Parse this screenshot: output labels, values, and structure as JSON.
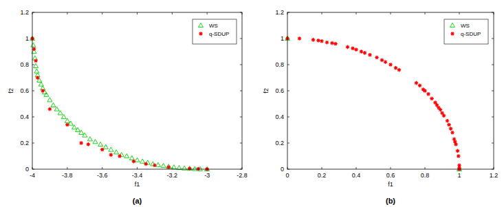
{
  "chart_data": [
    {
      "type": "scatter",
      "title": "(a)",
      "x_label": "f1",
      "y_label": "f2",
      "xlim": [
        -4,
        -2.8
      ],
      "xticks": [
        -4,
        -3.8,
        -3.6,
        -3.4,
        -3.2,
        -3,
        -2.8
      ],
      "ylim": [
        0,
        1.2
      ],
      "yticks": [
        0,
        0.2,
        0.4,
        0.6,
        0.8,
        1,
        1.2
      ],
      "grid": false,
      "legend": "northeast",
      "series": [
        {
          "name": "WS",
          "color": "#00d000",
          "marker": "triangle",
          "x": [
            -4,
            -3.995,
            -3.99,
            -3.985,
            -3.98,
            -3.975,
            -3.97,
            -3.96,
            -3.95,
            -3.94,
            -3.93,
            -3.92,
            -3.9,
            -3.88,
            -3.86,
            -3.84,
            -3.82,
            -3.8,
            -3.78,
            -3.76,
            -3.74,
            -3.72,
            -3.7,
            -3.67,
            -3.64,
            -3.61,
            -3.58,
            -3.55,
            -3.52,
            -3.49,
            -3.46,
            -3.43,
            -3.4,
            -3.37,
            -3.34,
            -3.31,
            -3.28,
            -3.25,
            -3.22,
            -3.19,
            -3.16,
            -3.13,
            -3.1,
            -3.07,
            -3.04,
            -3
          ],
          "values": [
            1,
            0.95,
            0.9,
            0.85,
            0.79,
            0.75,
            0.72,
            0.68,
            0.65,
            0.62,
            0.59,
            0.57,
            0.53,
            0.49,
            0.46,
            0.43,
            0.4,
            0.37,
            0.35,
            0.32,
            0.3,
            0.28,
            0.26,
            0.23,
            0.21,
            0.19,
            0.17,
            0.15,
            0.13,
            0.11,
            0.1,
            0.085,
            0.07,
            0.06,
            0.05,
            0.04,
            0.033,
            0.026,
            0.02,
            0.015,
            0.011,
            0.007,
            0.005,
            0.003,
            0.001,
            0
          ]
        },
        {
          "name": "q-SDUP",
          "color": "#ff0000",
          "marker": "star",
          "x": [
            -4,
            -3.99,
            -3.98,
            -3.97,
            -3.94,
            -3.9,
            -3.8,
            -3.72,
            -3.68,
            -3.6,
            -3.55,
            -3.5,
            -3.42,
            -3.35,
            -3.3,
            -3.22,
            -3.1,
            -3.05,
            -3
          ],
          "values": [
            1,
            0.92,
            0.83,
            0.7,
            0.6,
            0.46,
            0.34,
            0.2,
            0.19,
            0.15,
            0.11,
            0.1,
            0.06,
            0.04,
            0.03,
            0.015,
            0.005,
            0.003,
            0
          ]
        }
      ]
    },
    {
      "type": "scatter",
      "title": "(b)",
      "x_label": "f1",
      "y_label": "f2",
      "xlim": [
        0,
        1.2
      ],
      "xticks": [
        0,
        0.2,
        0.4,
        0.6,
        0.8,
        1,
        1.2
      ],
      "ylim": [
        0,
        1.2
      ],
      "yticks": [
        0,
        0.2,
        0.4,
        0.6,
        0.8,
        1,
        1.2
      ],
      "grid": false,
      "legend": "northeast",
      "series": [
        {
          "name": "WS",
          "color": "#00d000",
          "marker": "triangle",
          "x": [
            0,
            1
          ],
          "values": [
            1,
            0
          ]
        },
        {
          "name": "q-SDUP",
          "color": "#ff0000",
          "marker": "star",
          "x": [
            0,
            0.07,
            0.15,
            0.18,
            0.2,
            0.23,
            0.26,
            0.28,
            0.35,
            0.38,
            0.4,
            0.43,
            0.45,
            0.48,
            0.52,
            0.55,
            0.57,
            0.6,
            0.63,
            0.65,
            0.75,
            0.77,
            0.79,
            0.8,
            0.82,
            0.84,
            0.86,
            0.87,
            0.88,
            0.89,
            0.9,
            0.91,
            0.93,
            0.94,
            0.95,
            0.96,
            0.97,
            0.975,
            0.98,
            0.99,
            0.995,
            1,
            1,
            1
          ],
          "values": [
            1,
            1,
            0.99,
            0.985,
            0.98,
            0.97,
            0.965,
            0.96,
            0.935,
            0.925,
            0.915,
            0.9,
            0.89,
            0.875,
            0.855,
            0.835,
            0.82,
            0.8,
            0.775,
            0.76,
            0.66,
            0.64,
            0.61,
            0.6,
            0.575,
            0.54,
            0.51,
            0.49,
            0.47,
            0.455,
            0.43,
            0.41,
            0.37,
            0.34,
            0.31,
            0.28,
            0.23,
            0.21,
            0.19,
            0.14,
            0.1,
            0.03,
            0.01,
            0
          ]
        }
      ]
    }
  ]
}
